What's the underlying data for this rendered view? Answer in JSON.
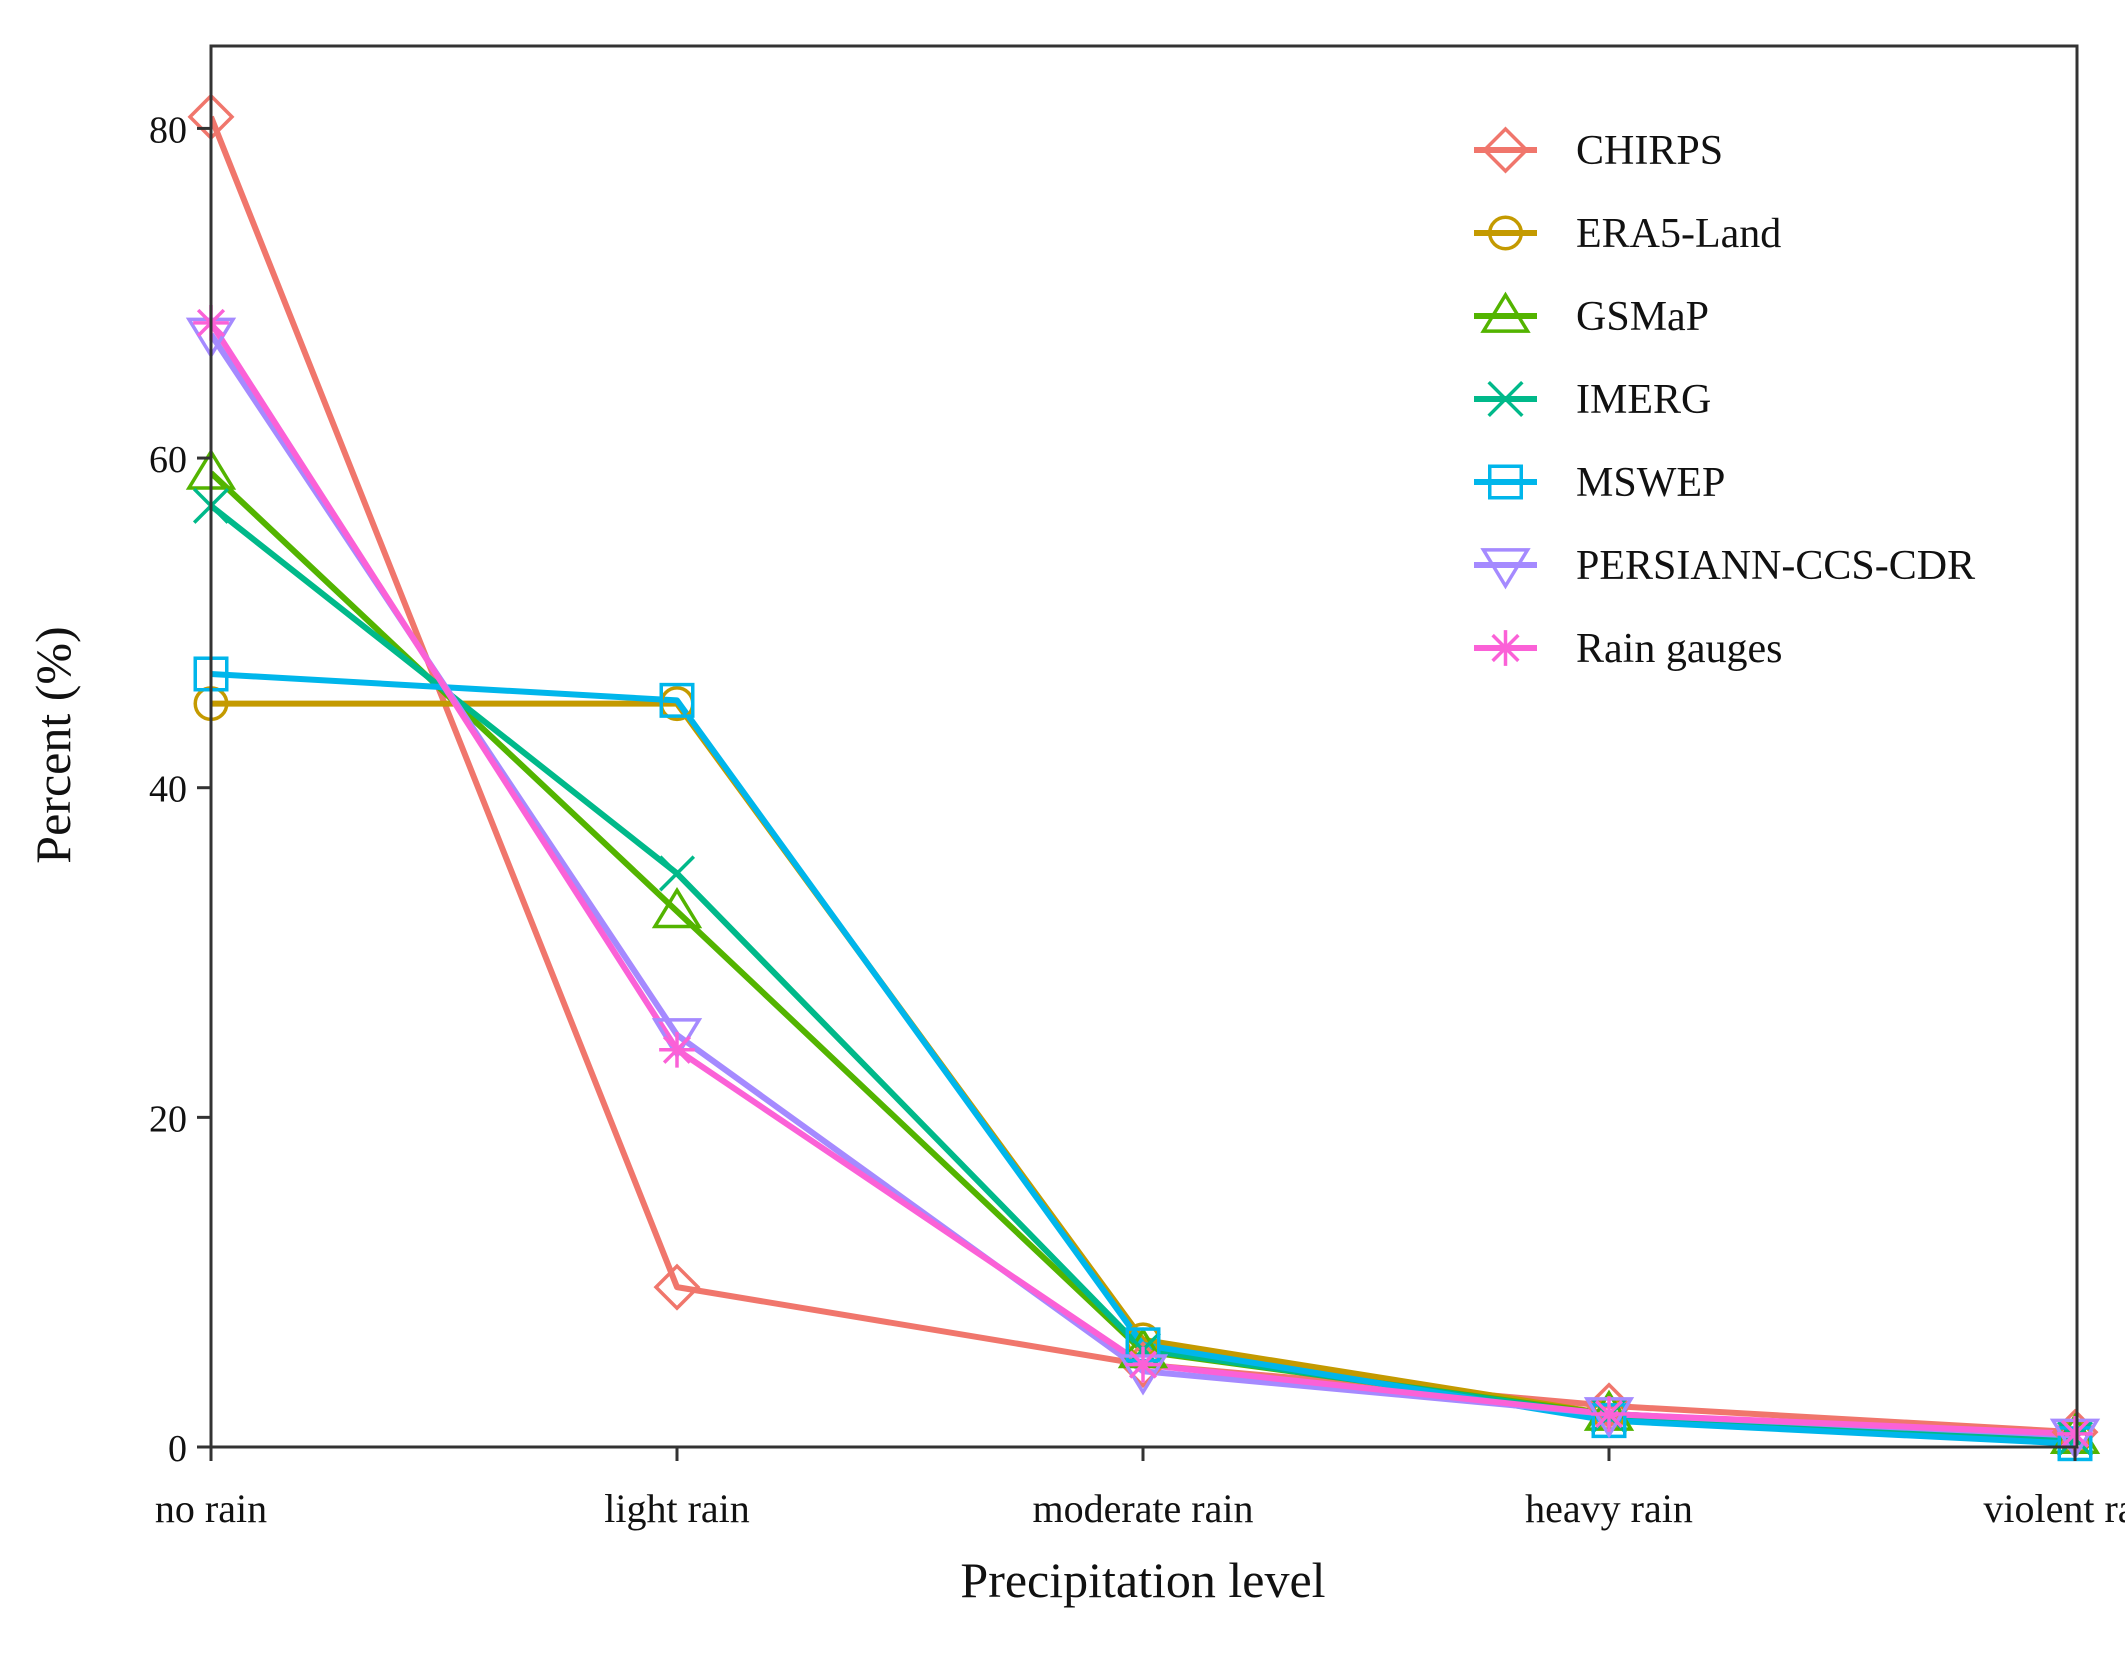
{
  "chart_data": {
    "type": "line",
    "title": "",
    "xlabel": "Precipitation level",
    "ylabel": "Percent (%)",
    "categories": [
      "no rain",
      "light rain",
      "moderate rain",
      "heavy rain",
      "violent rain"
    ],
    "ylim": [
      0,
      85
    ],
    "yticks": [
      0,
      20,
      40,
      60,
      80
    ],
    "grid": false,
    "legend_position": "top-right",
    "series": [
      {
        "name": "CHIRPS",
        "color": "#F0766C",
        "marker": "diamond",
        "values": [
          80.7,
          9.7,
          5.0,
          2.5,
          0.9
        ]
      },
      {
        "name": "ERA5-Land",
        "color": "#C49A00",
        "marker": "circle",
        "values": [
          45.1,
          45.1,
          6.5,
          2.0,
          0.6
        ]
      },
      {
        "name": "GSMaP",
        "color": "#53B400",
        "marker": "triangle-up",
        "values": [
          59.1,
          32.5,
          5.8,
          2.0,
          0.6
        ]
      },
      {
        "name": "IMERG",
        "color": "#00B98A",
        "marker": "x",
        "values": [
          57.1,
          34.8,
          5.9,
          1.9,
          0.5
        ]
      },
      {
        "name": "MSWEP",
        "color": "#00B6EB",
        "marker": "square",
        "values": [
          46.9,
          45.3,
          6.2,
          1.6,
          0.2
        ]
      },
      {
        "name": "PERSIANN-CCS-CDR",
        "color": "#A58AFF",
        "marker": "triangle-down",
        "values": [
          67.5,
          25.0,
          4.6,
          2.0,
          0.7
        ]
      },
      {
        "name": "Rain gauges",
        "color": "#FB61D7",
        "marker": "asterisk",
        "values": [
          68.2,
          24.1,
          5.0,
          2.0,
          0.8
        ]
      }
    ]
  }
}
